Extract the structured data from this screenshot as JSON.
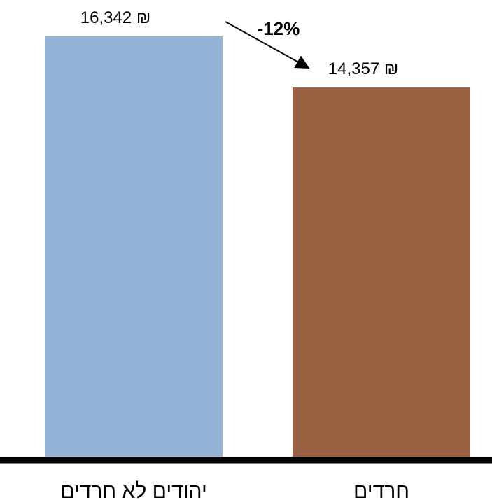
{
  "chart_data": {
    "type": "bar",
    "title": "",
    "xlabel": "",
    "ylabel": "",
    "categories": [
      "יהודים לא חרדים",
      "חרדים"
    ],
    "values": [
      16342,
      14357
    ],
    "value_labels": [
      "16,342 ₪",
      "14,357 ₪"
    ],
    "colors": [
      "#95b3d7",
      "#9a6242"
    ],
    "ylim": [
      0,
      16342
    ],
    "grid": false,
    "legend": "none",
    "annotation": {
      "text": "-12%",
      "type": "arrow",
      "from_category": 0,
      "to_category": 1
    }
  }
}
